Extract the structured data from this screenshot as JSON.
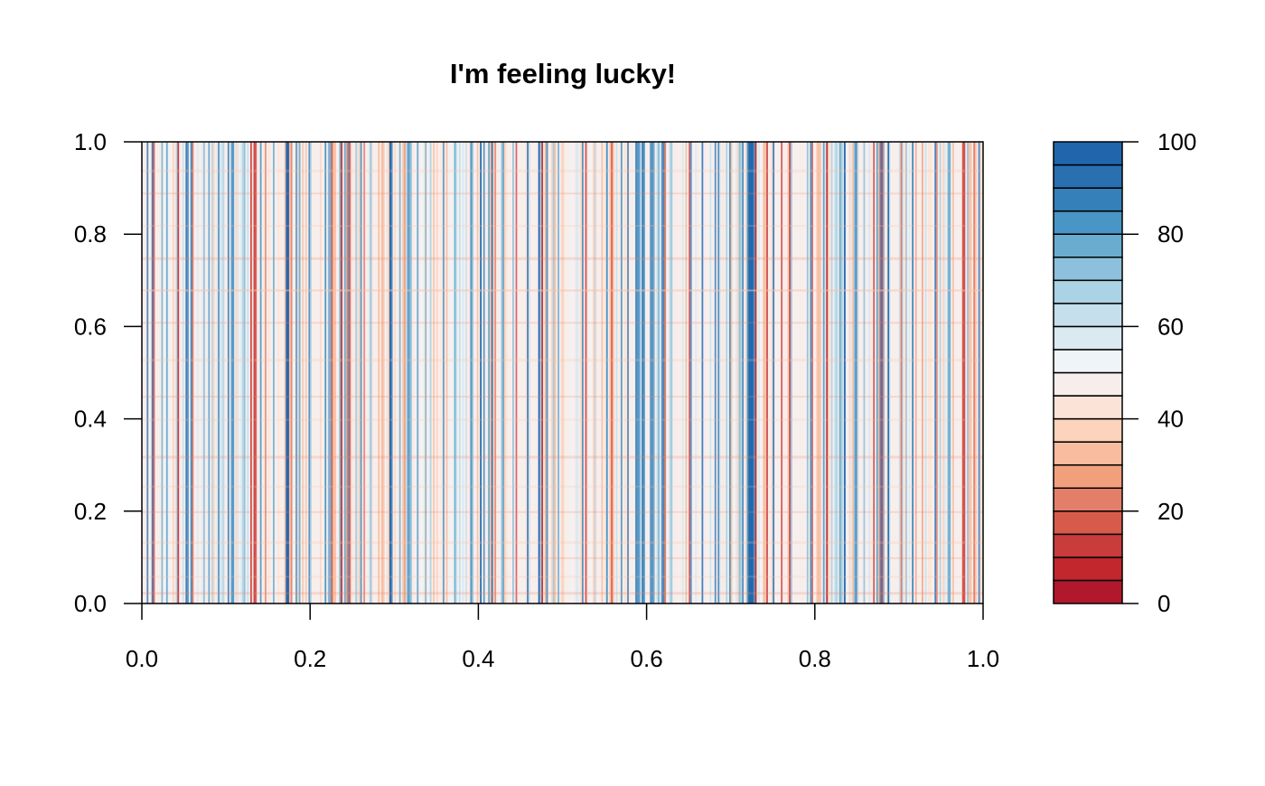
{
  "chart_data": {
    "type": "heatmap",
    "title": "I'm feeling lucky!",
    "xlabel": "",
    "ylabel": "",
    "xlim": [
      0,
      1
    ],
    "ylim": [
      0,
      1
    ],
    "x_ticks": [
      "0.0",
      "0.2",
      "0.4",
      "0.6",
      "0.8",
      "1.0"
    ],
    "y_ticks": [
      "0.0",
      "0.2",
      "0.4",
      "0.6",
      "0.8",
      "1.0"
    ],
    "legend": {
      "position": "right",
      "range": [
        0,
        100
      ],
      "ticks": [
        "0",
        "20",
        "40",
        "60",
        "80",
        "100"
      ],
      "colors": [
        "#b2182b",
        "#c1272d",
        "#c93c3c",
        "#d75b4b",
        "#e37f69",
        "#f2a07c",
        "#f9bc9e",
        "#fdd3bc",
        "#fbe4d7",
        "#f7eeec",
        "#eef4f7",
        "#dbe9f1",
        "#c5dfec",
        "#aad3e5",
        "#8dc0dd",
        "#6aacd0",
        "#4995c5",
        "#3680b9",
        "#2a6fb0",
        "#2166ac"
      ]
    },
    "column_pattern_note_values": {
      "dark_blue_columns_x": [
        0.172,
        0.723
      ],
      "row_texture_y": [
        0.025,
        0.06,
        0.1,
        0.135,
        0.2,
        0.255,
        0.32,
        0.4,
        0.45,
        0.53,
        0.61,
        0.68,
        0.75,
        0.82,
        0.89,
        0.94
      ]
    }
  }
}
